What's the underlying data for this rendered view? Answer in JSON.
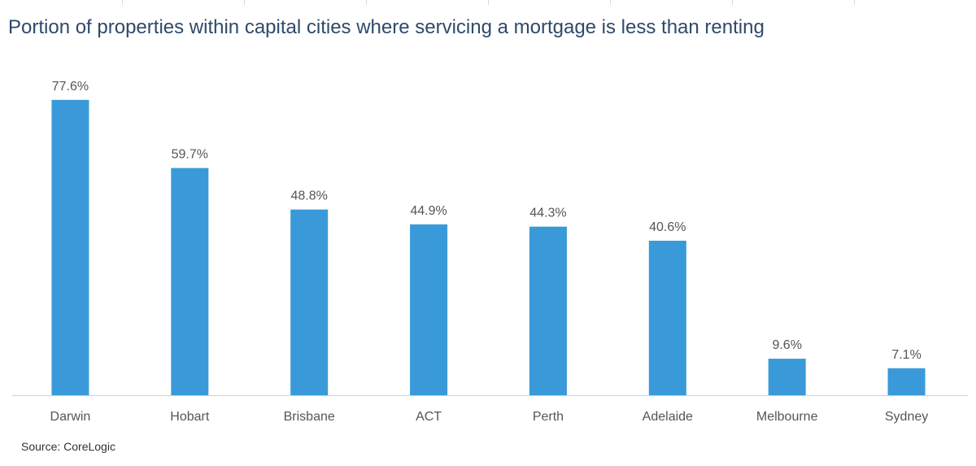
{
  "chart_data": {
    "type": "bar",
    "title": "Portion of properties within capital cities where servicing a mortgage is less than renting",
    "source": "Source: CoreLogic",
    "categories": [
      "Darwin",
      "Hobart",
      "Brisbane",
      "ACT",
      "Perth",
      "Adelaide",
      "Melbourne",
      "Sydney"
    ],
    "values": [
      77.6,
      59.7,
      48.8,
      44.9,
      44.3,
      40.6,
      9.6,
      7.1
    ],
    "data_labels": [
      "77.6%",
      "59.7%",
      "48.8%",
      "44.9%",
      "44.3%",
      "40.6%",
      "9.6%",
      "7.1%"
    ],
    "value_unit": "%",
    "xlabel": "",
    "ylabel": "",
    "ylim": [
      0,
      100
    ],
    "grid": false,
    "legend": "none",
    "colors": {
      "bar": "#3a9ad9",
      "axis": "#d0d0d0",
      "title": "#2e4a6a",
      "label": "#555555"
    }
  }
}
